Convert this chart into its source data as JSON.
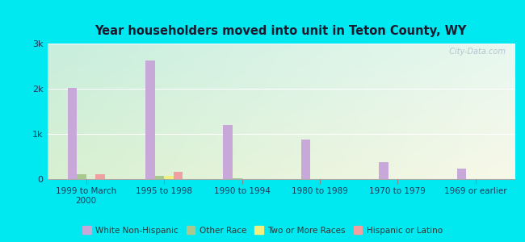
{
  "title": "Year householders moved into unit in Teton County, WY",
  "categories": [
    "1999 to March\n2000",
    "1995 to 1998",
    "1990 to 1994",
    "1980 to 1989",
    "1970 to 1979",
    "1969 or earlier"
  ],
  "series": {
    "White Non-Hispanic": [
      2020,
      2620,
      1200,
      870,
      380,
      230
    ],
    "Other Race": [
      100,
      80,
      10,
      0,
      0,
      0
    ],
    "Two or More Races": [
      0,
      75,
      0,
      0,
      0,
      0
    ],
    "Hispanic or Latino": [
      100,
      160,
      0,
      0,
      0,
      0
    ]
  },
  "colors": {
    "White Non-Hispanic": "#c8a8d8",
    "Other Race": "#a8c890",
    "Two or More Races": "#f0f080",
    "Hispanic or Latino": "#f0a0a0"
  },
  "ylim": [
    0,
    3000
  ],
  "yticks": [
    0,
    1000,
    2000,
    3000
  ],
  "ytick_labels": [
    "0",
    "1k",
    "2k",
    "3k"
  ],
  "background_outer": "#00e8f0",
  "background_inner_top_left": "#c8eedd",
  "background_inner_top_right": "#e8f8f0",
  "background_inner_bottom_right": "#f8f8e8",
  "watermark": "  City-Data.com",
  "bar_width": 0.12,
  "legend_labels": [
    "White Non-Hispanic",
    "Other Race",
    "Two or More Races",
    "Hispanic or Latino"
  ]
}
